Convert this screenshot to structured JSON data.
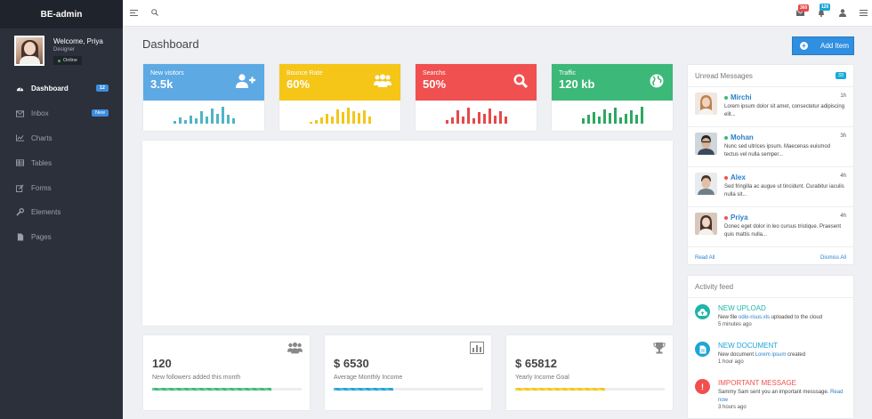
{
  "app": {
    "brand": "BE-admin"
  },
  "profile": {
    "welcome": "Welcome, Priya",
    "role": "Designer",
    "status": "Online"
  },
  "sidebar": {
    "items": [
      {
        "label": "Dashboard",
        "icon": "dashboard-icon",
        "badge": "12",
        "active": true
      },
      {
        "label": "Inbox",
        "icon": "envelope-icon",
        "badge": "New"
      },
      {
        "label": "Charts",
        "icon": "chart-icon"
      },
      {
        "label": "Tables",
        "icon": "table-icon"
      },
      {
        "label": "Forms",
        "icon": "edit-icon"
      },
      {
        "label": "Elements",
        "icon": "wrench-icon"
      },
      {
        "label": "Pages",
        "icon": "file-icon"
      }
    ]
  },
  "topbar": {
    "mail_count": "360",
    "bell_count": "120"
  },
  "page": {
    "title": "Dashboard",
    "add_label": "Add Item"
  },
  "stats": [
    {
      "label": "New visitors",
      "value": "3.5k",
      "color": "#5da9e4",
      "bar_color": "#4fb4c8",
      "bars": [
        0.15,
        0.35,
        0.2,
        0.45,
        0.3,
        0.7,
        0.4,
        0.85,
        0.55,
        0.95,
        0.5,
        0.3
      ],
      "icon": "user-plus-icon"
    },
    {
      "label": "Bounce Rate",
      "value": "60%",
      "color": "#f5c518",
      "bar_color": "#f5c518",
      "bars": [
        0.1,
        0.2,
        0.35,
        0.55,
        0.4,
        0.8,
        0.65,
        0.9,
        0.7,
        0.6,
        0.75,
        0.4
      ],
      "icon": "users-icon"
    },
    {
      "label": "Searchs",
      "value": "50%",
      "color": "#f0504f",
      "bar_color": "#e84848",
      "bars": [
        0.2,
        0.35,
        0.75,
        0.4,
        0.9,
        0.3,
        0.65,
        0.55,
        0.85,
        0.45,
        0.7,
        0.4
      ],
      "icon": "search-icon"
    },
    {
      "label": "Traffic",
      "value": "120 kb",
      "color": "#3cb878",
      "bar_color": "#2ea860",
      "bars": [
        0.3,
        0.5,
        0.65,
        0.4,
        0.8,
        0.6,
        0.9,
        0.35,
        0.55,
        0.75,
        0.5,
        0.95
      ],
      "icon": "globe-icon"
    }
  ],
  "cards": [
    {
      "value": "120",
      "label": "New followers added this month",
      "progress": 0.8,
      "color": "#3cb878",
      "icon": "users-icon"
    },
    {
      "value": "$ 6530",
      "label": "Average Monthly Income",
      "progress": 0.4,
      "color": "#1fa4d6",
      "icon": "bar-chart-icon"
    },
    {
      "value": "$ 65812",
      "label": "Yearly Income Goal",
      "progress": 0.6,
      "color": "#f5c518",
      "icon": "trophy-icon"
    }
  ],
  "messages": {
    "title": "Unread Messages",
    "count": "33",
    "items": [
      {
        "name": "Mirchi",
        "time": "1h",
        "text": "Lorem ipsum dolor sit amet, consectetur adipiscing elit...",
        "status_color": "#3cb878"
      },
      {
        "name": "Mohan",
        "time": "3h",
        "text": "Nunc sed ultrices ipsum. Maecenas euismod tectus vel nulla semper...",
        "status_color": "#3cb878"
      },
      {
        "name": "Alex",
        "time": "4h",
        "text": "Sed fringilla ac augue ut tincidunt. Curabitur iaculis nulla sit...",
        "status_color": "#f0504f"
      },
      {
        "name": "Priya",
        "time": "4h",
        "text": "Donec eget dolor in leo cursus tristique. Praesent quis mattis nulla...",
        "status_color": "#f0504f"
      }
    ],
    "read_all": "Read All",
    "dismiss_all": "Dismiss All"
  },
  "activity": {
    "title": "Activity feed",
    "items": [
      {
        "title": "NEW UPLOAD",
        "pre": "New file ",
        "link": "odio-risus.xls",
        "post": " uploaded to the cloud",
        "time": "5 minutes ago",
        "color": "#1fb5a8"
      },
      {
        "title": "NEW DOCUMENT",
        "pre": "New document ",
        "link": "Lorem ipsum",
        "post": " created",
        "time": "1 hour ago",
        "color": "#1fa4d6"
      },
      {
        "title": "IMPORTANT MESSAGE",
        "pre": "Sammy Sam sent you an important messsage. ",
        "link": "Read now",
        "post": "",
        "time": "3 hours ago",
        "color": "#f0504f"
      }
    ]
  }
}
